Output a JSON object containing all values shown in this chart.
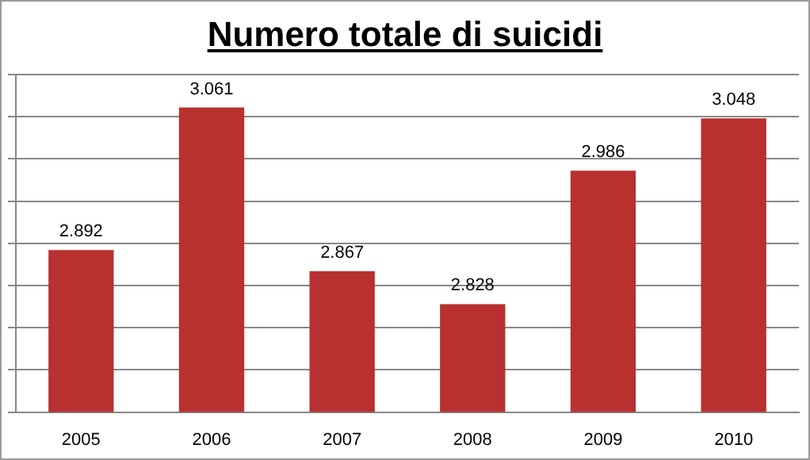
{
  "chart_data": {
    "type": "bar",
    "title": "Numero totale di suicidi",
    "categories": [
      "2005",
      "2006",
      "2007",
      "2008",
      "2009",
      "2010"
    ],
    "values": [
      2892,
      3061,
      2867,
      2828,
      2986,
      3048
    ],
    "value_labels": [
      "2.892",
      "3.061",
      "2.867",
      "2.828",
      "2.986",
      "3.048"
    ],
    "color": "#b83030",
    "ylim": [
      2700,
      3100
    ],
    "yticks": [
      {
        "value": 2700,
        "label": null
      },
      {
        "value": 2750,
        "label": null
      },
      {
        "value": 2800,
        "label": null
      },
      {
        "value": 2850,
        "label": null
      },
      {
        "value": 2900,
        "label": null
      },
      {
        "value": 2950,
        "label": null
      },
      {
        "value": 3000,
        "label": null
      },
      {
        "value": 3050,
        "label": null
      },
      {
        "value": 3100,
        "label": null
      }
    ],
    "tick_labels": "x",
    "grid": "y",
    "legend": false
  }
}
